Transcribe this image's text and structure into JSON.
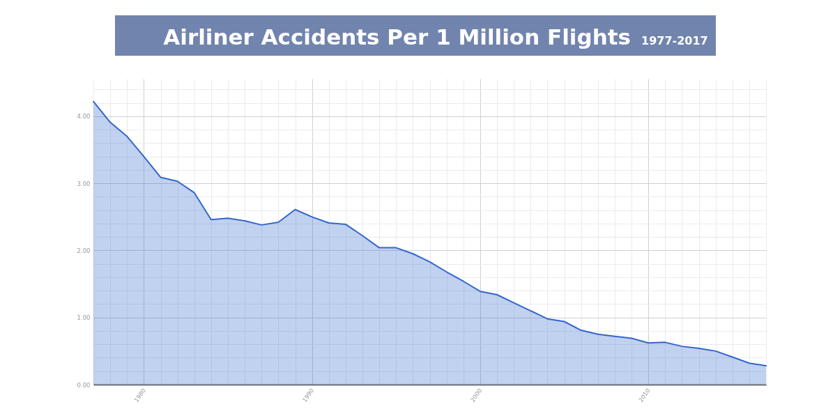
{
  "chart_data": {
    "type": "area",
    "title": "Airliner Accidents Per 1 Million Flights",
    "subtitle": "1977-2017",
    "x": [
      1977,
      1978,
      1979,
      1980,
      1981,
      1982,
      1983,
      1984,
      1985,
      1986,
      1987,
      1988,
      1989,
      1990,
      1991,
      1992,
      1993,
      1994,
      1995,
      1996,
      1997,
      1998,
      1999,
      2000,
      2001,
      2002,
      2003,
      2004,
      2005,
      2006,
      2007,
      2008,
      2009,
      2010,
      2011,
      2012,
      2013,
      2014,
      2015,
      2016,
      2017
    ],
    "series": [
      {
        "color": "#3366cc",
        "values": [
          4.22,
          3.91,
          3.7,
          3.4,
          3.09,
          3.03,
          2.86,
          2.46,
          2.48,
          2.44,
          2.38,
          2.42,
          2.61,
          2.5,
          2.41,
          2.39,
          2.22,
          2.04,
          2.04,
          1.95,
          1.83,
          1.68,
          1.54,
          1.39,
          1.34,
          1.22,
          1.1,
          0.98,
          0.94,
          0.81,
          0.75,
          0.72,
          0.69,
          0.62,
          0.63,
          0.57,
          0.54,
          0.5,
          0.41,
          0.32,
          0.28
        ]
      }
    ],
    "xlim": [
      1977,
      2017
    ],
    "xticks": [
      {
        "value": 1977,
        "label": null
      },
      {
        "value": 1978,
        "label": null
      },
      {
        "value": 1979,
        "label": null
      },
      1980,
      {
        "value": 1981,
        "label": null
      },
      {
        "value": 1982,
        "label": null
      },
      {
        "value": 1983,
        "label": null
      },
      {
        "value": 1984,
        "label": null
      },
      {
        "value": 1985,
        "label": null
      },
      {
        "value": 1986,
        "label": null
      },
      {
        "value": 1987,
        "label": null
      },
      {
        "value": 1988,
        "label": null
      },
      {
        "value": 1989,
        "label": null
      },
      1990,
      {
        "value": 1991,
        "label": null
      },
      {
        "value": 1992,
        "label": null
      },
      {
        "value": 1993,
        "label": null
      },
      {
        "value": 1994,
        "label": null
      },
      {
        "value": 1995,
        "label": null
      },
      {
        "value": 1996,
        "label": null
      },
      {
        "value": 1997,
        "label": null
      },
      {
        "value": 1998,
        "label": null
      },
      {
        "value": 1999,
        "label": null
      },
      2000,
      {
        "value": 2001,
        "label": null
      },
      {
        "value": 2002,
        "label": null
      },
      {
        "value": 2003,
        "label": null
      },
      {
        "value": 2004,
        "label": null
      },
      {
        "value": 2005,
        "label": null
      },
      {
        "value": 2006,
        "label": null
      },
      {
        "value": 2007,
        "label": null
      },
      {
        "value": 2008,
        "label": null
      },
      {
        "value": 2009,
        "label": null
      },
      2010,
      {
        "value": 2011,
        "label": null
      },
      {
        "value": 2012,
        "label": null
      },
      {
        "value": 2013,
        "label": null
      },
      {
        "value": 2014,
        "label": null
      },
      {
        "value": 2015,
        "label": null
      },
      {
        "value": 2016,
        "label": null
      },
      {
        "value": 2017,
        "label": null
      }
    ],
    "ylim": [
      0,
      4.56
    ],
    "yticks": [
      {
        "value": 0,
        "label": "0.00"
      },
      {
        "value": 0.2,
        "label": null
      },
      {
        "value": 0.4,
        "label": null
      },
      {
        "value": 0.6,
        "label": null
      },
      {
        "value": 0.8,
        "label": null
      },
      {
        "value": 1,
        "label": "1.00"
      },
      {
        "value": 1.2,
        "label": null
      },
      {
        "value": 1.4,
        "label": null
      },
      {
        "value": 1.6,
        "label": null
      },
      {
        "value": 1.8,
        "label": null
      },
      {
        "value": 2,
        "label": "2.00"
      },
      {
        "value": 2.2,
        "label": null
      },
      {
        "value": 2.4,
        "label": null
      },
      {
        "value": 2.6,
        "label": null
      },
      {
        "value": 2.8,
        "label": null
      },
      {
        "value": 3,
        "label": "3.00"
      },
      {
        "value": 3.2,
        "label": null
      },
      {
        "value": 3.4,
        "label": null
      },
      {
        "value": 3.6,
        "label": null
      },
      {
        "value": 3.8,
        "label": null
      },
      {
        "value": 4,
        "label": "4.00"
      },
      {
        "value": 4.2,
        "label": null
      },
      {
        "value": 4.4,
        "label": null
      }
    ],
    "grid": true
  }
}
